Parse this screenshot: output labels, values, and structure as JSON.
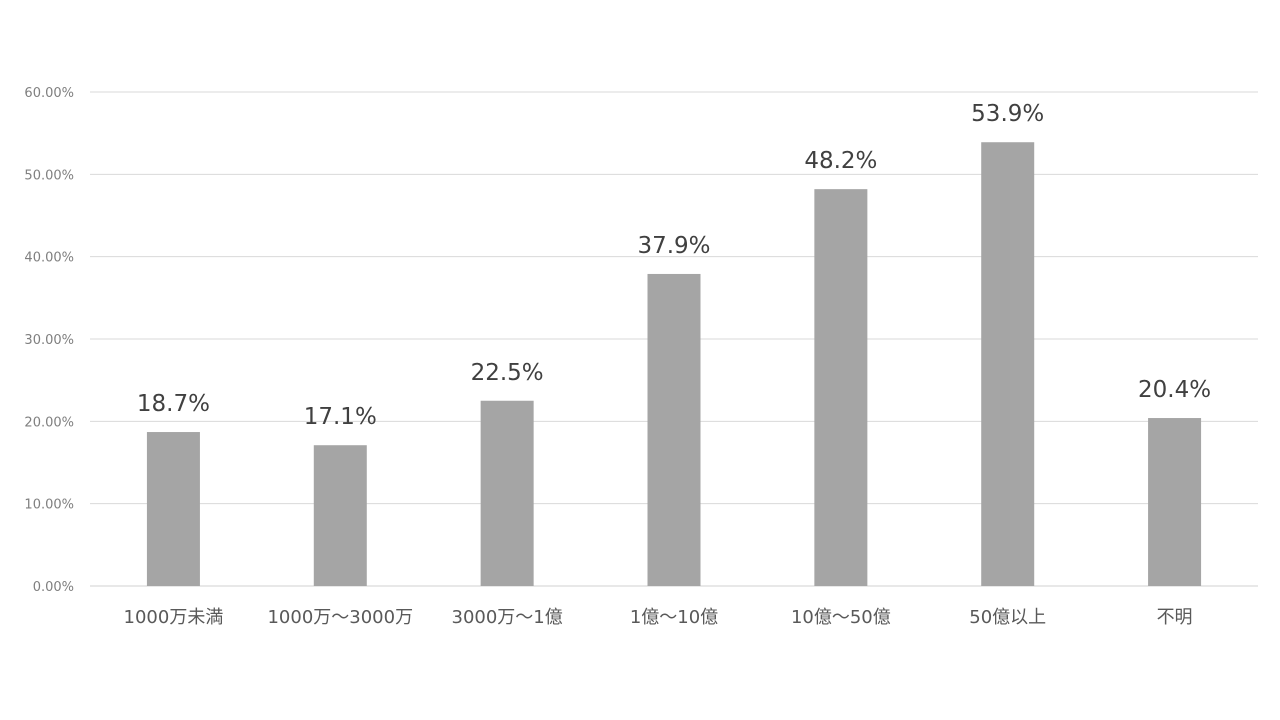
{
  "chart_data": {
    "type": "bar",
    "title": "",
    "xlabel": "",
    "ylabel": "",
    "categories": [
      "1000万未満",
      "1000万～3000万",
      "3000万～1億",
      "1億～10億",
      "10億～50億",
      "50億以上",
      "不明"
    ],
    "values": [
      18.7,
      17.1,
      22.5,
      37.9,
      48.2,
      53.9,
      20.4
    ],
    "data_labels": [
      "18.7%",
      "17.1%",
      "22.5%",
      "37.9%",
      "48.2%",
      "53.9%",
      "20.4%"
    ],
    "ylim": [
      0,
      60
    ],
    "yticks": [
      0,
      10,
      20,
      30,
      40,
      50,
      60
    ],
    "ytick_labels": [
      "0.00%",
      "10.00%",
      "20.00%",
      "30.00%",
      "40.00%",
      "50.00%",
      "60.00%"
    ],
    "grid": true,
    "legend": "none",
    "bar_color": "#a5a5a5"
  }
}
